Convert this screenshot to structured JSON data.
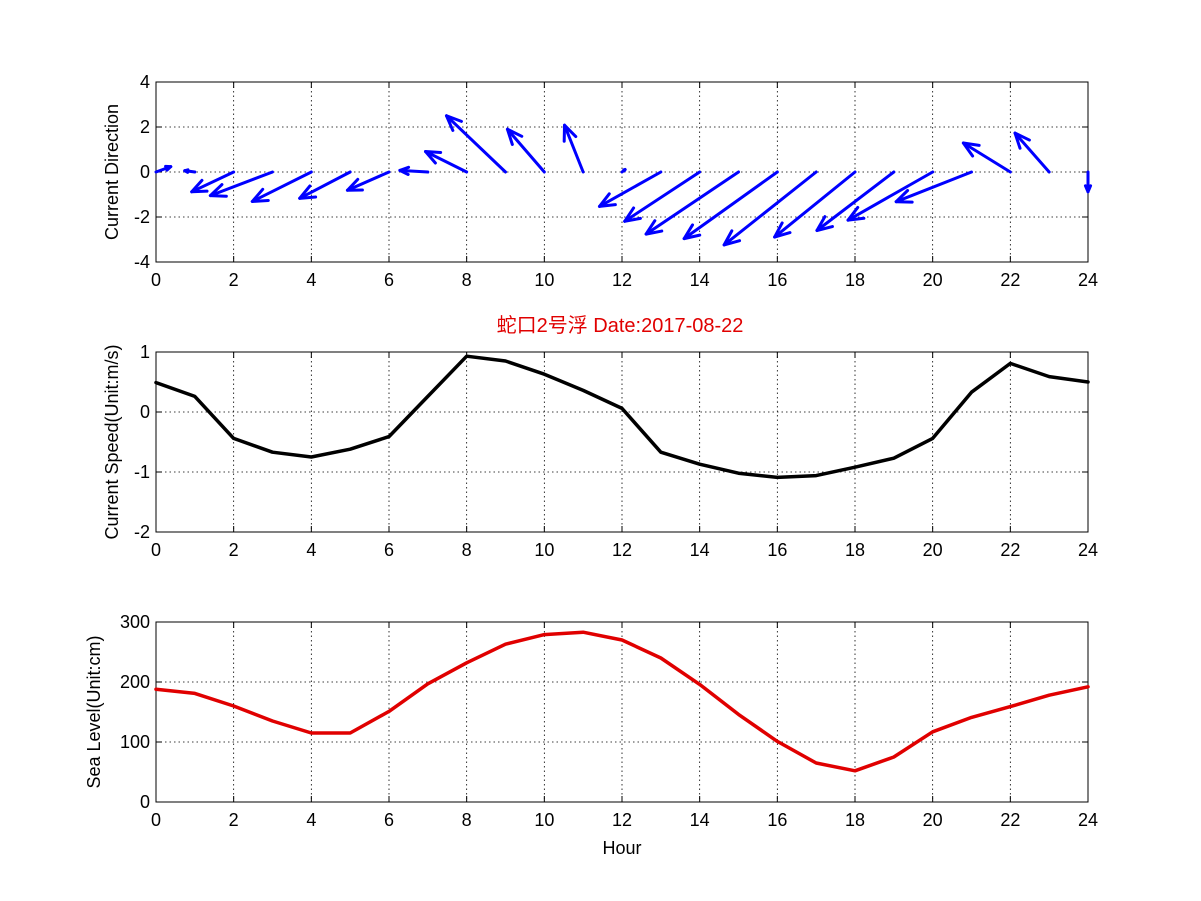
{
  "title": "蛇口2号浮   Date:2017-08-22",
  "colors": {
    "direction": "#0000ff",
    "speed": "#000000",
    "sea_level": "#e00000",
    "title": "#e00000"
  },
  "chart_data": [
    {
      "type": "quiver",
      "ylabel": "Current Direction",
      "xlim": [
        0,
        24
      ],
      "ylim": [
        -4,
        4
      ],
      "xticks": [
        "0",
        "2",
        "4",
        "6",
        "8",
        "10",
        "12",
        "14",
        "16",
        "18",
        "20",
        "22",
        "24"
      ],
      "yticks": [
        "4",
        "2",
        "0",
        "-2",
        "-4"
      ],
      "grid": true,
      "x": [
        0,
        1,
        2,
        3,
        4,
        5,
        6,
        7,
        8,
        9,
        10,
        11,
        12,
        13,
        14,
        15,
        16,
        17,
        18,
        19,
        20,
        21,
        22,
        23,
        24
      ],
      "u": [
        0.38,
        -0.26,
        -1.08,
        -1.6,
        -1.52,
        -1.3,
        -1.07,
        -0.72,
        -1.06,
        -1.52,
        -0.95,
        -0.48,
        0.08,
        -1.58,
        -1.93,
        -2.38,
        -2.4,
        -2.37,
        -2.07,
        -1.98,
        -2.18,
        -1.94,
        -1.21,
        -0.88,
        0.0
      ],
      "v": [
        0.24,
        0.06,
        -0.88,
        -1.05,
        -1.31,
        -1.17,
        -0.81,
        0.07,
        0.91,
        2.5,
        1.9,
        2.08,
        0.11,
        -1.53,
        -2.19,
        -2.76,
        -2.96,
        -3.24,
        -2.89,
        -2.6,
        -2.14,
        -1.32,
        1.29,
        1.73,
        -0.88
      ]
    },
    {
      "type": "line",
      "ylabel": "Current Speed(Unit:m/s)",
      "xlim": [
        0,
        24
      ],
      "ylim": [
        -2,
        1
      ],
      "xticks": [
        "0",
        "2",
        "4",
        "6",
        "8",
        "10",
        "12",
        "14",
        "16",
        "18",
        "20",
        "22",
        "24"
      ],
      "yticks": [
        "1",
        "0",
        "-1",
        "-2"
      ],
      "grid": true,
      "x": [
        0,
        1,
        2,
        3,
        4,
        5,
        6,
        7,
        8,
        9,
        10,
        11,
        12,
        13,
        14,
        15,
        16,
        17,
        18,
        19,
        20,
        21,
        22,
        23,
        24
      ],
      "y": [
        0.49,
        0.26,
        -0.44,
        -0.67,
        -0.75,
        -0.62,
        -0.41,
        0.26,
        0.93,
        0.85,
        0.63,
        0.36,
        0.06,
        -0.67,
        -0.87,
        -1.02,
        -1.09,
        -1.06,
        -0.92,
        -0.77,
        -0.44,
        0.33,
        0.81,
        0.59,
        0.5
      ]
    },
    {
      "type": "line",
      "ylabel": "Sea Level(Unit:cm)",
      "xlabel": "Hour",
      "xlim": [
        0,
        24
      ],
      "ylim": [
        0,
        300
      ],
      "xticks": [
        "0",
        "2",
        "4",
        "6",
        "8",
        "10",
        "12",
        "14",
        "16",
        "18",
        "20",
        "22",
        "24"
      ],
      "yticks": [
        "300",
        "200",
        "100",
        "0"
      ],
      "grid": true,
      "x": [
        0,
        1,
        2,
        3,
        4,
        5,
        6,
        7,
        8,
        9,
        10,
        11,
        12,
        13,
        14,
        15,
        16,
        17,
        18,
        19,
        20,
        21,
        22,
        23,
        24
      ],
      "y": [
        188,
        181,
        160,
        135,
        115,
        115,
        151,
        197,
        232,
        263,
        279,
        283,
        270,
        240,
        196,
        146,
        101,
        65,
        52,
        75,
        117,
        141,
        159,
        178,
        192
      ]
    }
  ]
}
